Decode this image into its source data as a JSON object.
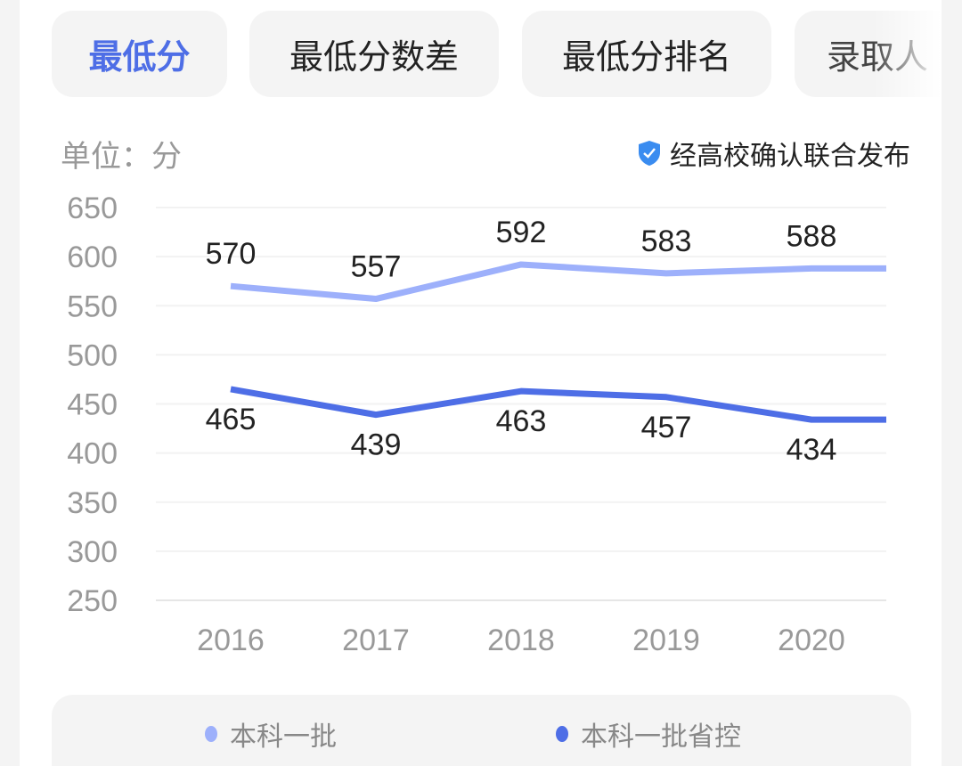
{
  "tabs": [
    {
      "label": "最低分",
      "active": true
    },
    {
      "label": "最低分数差"
    },
    {
      "label": "最低分排名"
    },
    {
      "label": "录取人"
    }
  ],
  "unit_label": "单位：分",
  "verified_label": "经高校确认联合发布",
  "colors": {
    "accent": "#4e6ee6",
    "series1": "#9db0fb",
    "series2": "#4e6ee6"
  },
  "chart_data": {
    "type": "line",
    "categories": [
      "2016",
      "2017",
      "2018",
      "2019",
      "2020"
    ],
    "ylim": [
      250,
      650
    ],
    "yticks": [
      "650",
      "600",
      "550",
      "500",
      "450",
      "400",
      "350",
      "300",
      "250"
    ],
    "grid": true,
    "legend": "bottom",
    "series": [
      {
        "name": "本科一批",
        "values": [
          570,
          557,
          592,
          583,
          588
        ]
      },
      {
        "name": "本科一批省控",
        "values": [
          465,
          439,
          463,
          457,
          434
        ]
      }
    ]
  }
}
